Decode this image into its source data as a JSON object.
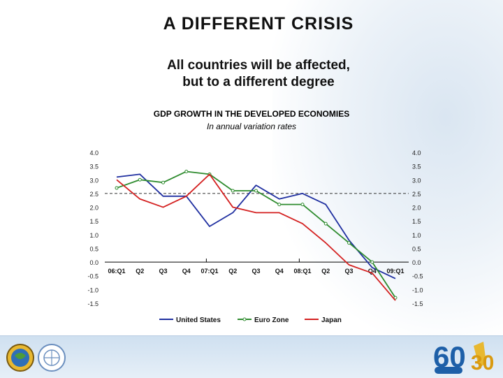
{
  "slide": {
    "title": "A DIFFERENT CRISIS",
    "subtitle_line1": "All countries will be affected,",
    "subtitle_line2": "but to a different degree"
  },
  "chart_data": {
    "type": "line",
    "title": "GDP GROWTH IN THE DEVELOPED ECONOMIES",
    "subtitle": "In annual variation rates",
    "categories": [
      "06:Q1",
      "Q2",
      "Q3",
      "Q4",
      "07:Q1",
      "Q2",
      "Q3",
      "Q4",
      "08:Q1",
      "Q2",
      "Q3",
      "Q4",
      "09:Q1"
    ],
    "ylim": [
      -1.5,
      4.0
    ],
    "yticks": [
      "4.0",
      "3.5",
      "3.0",
      "2.5",
      "2.0",
      "1.5",
      "1.0",
      "0.5",
      "0.0",
      "-0.5",
      "-1.0",
      "-1.5"
    ],
    "reference_line": 2.5,
    "series": [
      {
        "name": "United States",
        "color": "#1f2fa0",
        "values": [
          3.1,
          3.2,
          2.4,
          2.4,
          1.3,
          1.8,
          2.8,
          2.3,
          2.5,
          2.1,
          0.8,
          -0.2,
          -0.6
        ]
      },
      {
        "name": "Euro Zone",
        "color": "#2e8b2e",
        "values": [
          2.7,
          3.0,
          2.9,
          3.3,
          3.2,
          2.6,
          2.6,
          2.1,
          2.1,
          1.4,
          0.7,
          0.0,
          -1.3
        ]
      },
      {
        "name": "Japan",
        "color": "#d42020",
        "values": [
          3.0,
          2.3,
          2.0,
          2.4,
          3.2,
          2.0,
          1.8,
          1.8,
          1.4,
          0.7,
          -0.1,
          -0.4,
          -1.4
        ]
      }
    ],
    "legend_position": "bottom"
  },
  "footer": {
    "logo_left_1": "globe-emblem",
    "logo_left_2": "un-emblem",
    "logo_right": "60th-anniversary-logo"
  }
}
